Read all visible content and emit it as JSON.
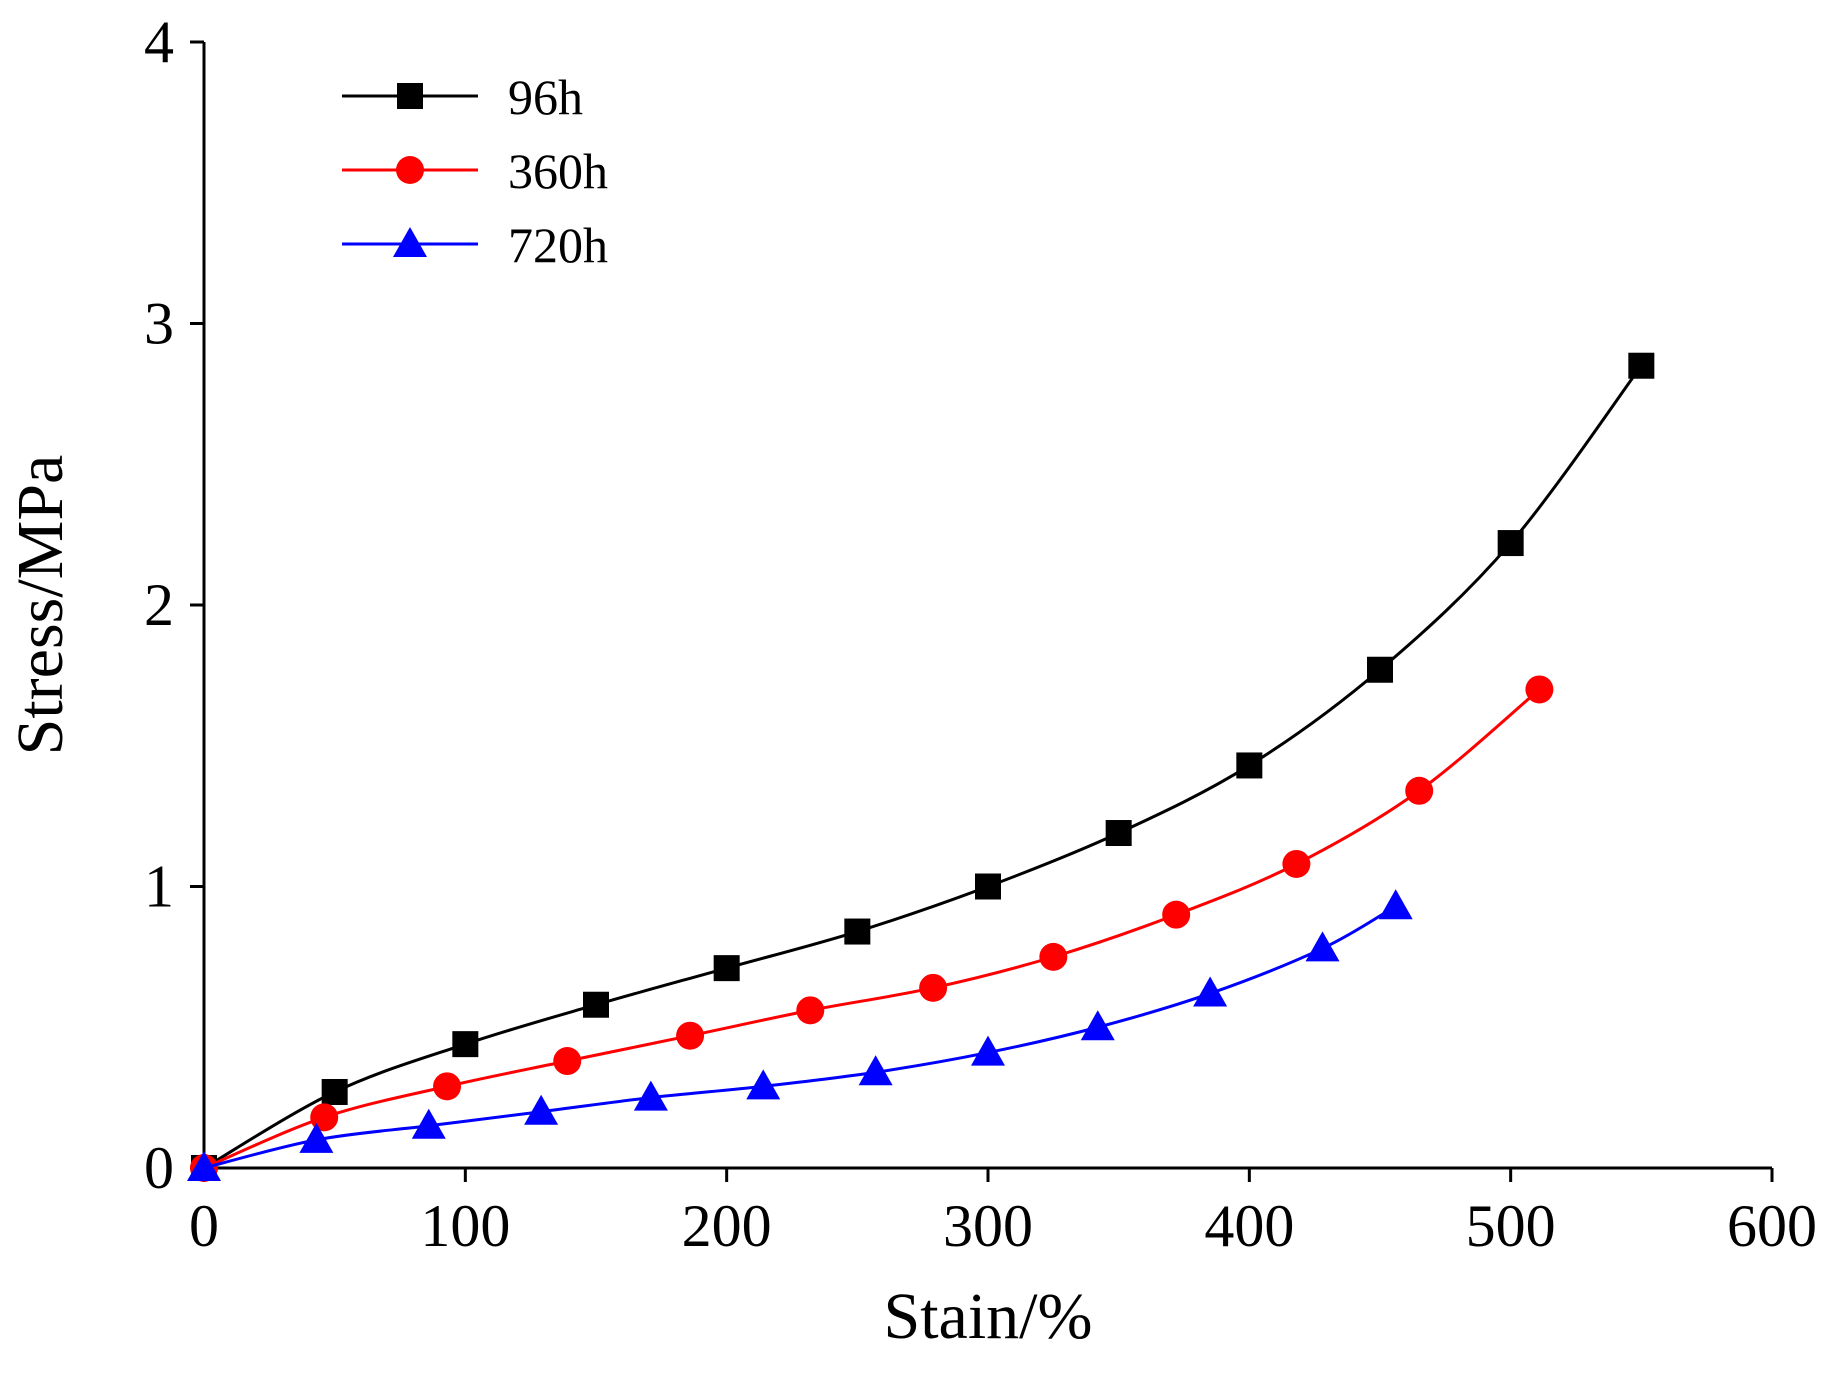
{
  "chart_data": {
    "type": "line",
    "title": "",
    "xlabel": "Stain/%",
    "ylabel": "Stress/MPa",
    "xlim": [
      0,
      600
    ],
    "ylim": [
      0,
      4
    ],
    "xticks": [
      0,
      100,
      200,
      300,
      400,
      500,
      600
    ],
    "yticks": [
      0,
      1,
      2,
      3,
      4
    ],
    "grid": false,
    "legend_position": "top-left",
    "series": [
      {
        "name": "96h",
        "color": "#000000",
        "marker": "square",
        "x": [
          0,
          50,
          100,
          150,
          200,
          250,
          300,
          350,
          400,
          450,
          500,
          550
        ],
        "y": [
          0,
          0.27,
          0.44,
          0.58,
          0.71,
          0.84,
          1.0,
          1.19,
          1.43,
          1.77,
          2.22,
          2.85
        ]
      },
      {
        "name": "360h",
        "color": "#ff0000",
        "marker": "circle",
        "x": [
          0,
          46,
          93,
          139,
          186,
          232,
          279,
          325,
          372,
          418,
          465,
          511
        ],
        "y": [
          0,
          0.18,
          0.29,
          0.38,
          0.47,
          0.56,
          0.64,
          0.75,
          0.9,
          1.08,
          1.34,
          1.7
        ]
      },
      {
        "name": "720h",
        "color": "#0000ff",
        "marker": "triangle",
        "x": [
          0,
          43,
          86,
          129,
          171,
          214,
          257,
          300,
          342,
          385,
          428,
          456
        ],
        "y": [
          0,
          0.1,
          0.15,
          0.2,
          0.25,
          0.29,
          0.34,
          0.41,
          0.5,
          0.62,
          0.78,
          0.93
        ]
      }
    ]
  }
}
